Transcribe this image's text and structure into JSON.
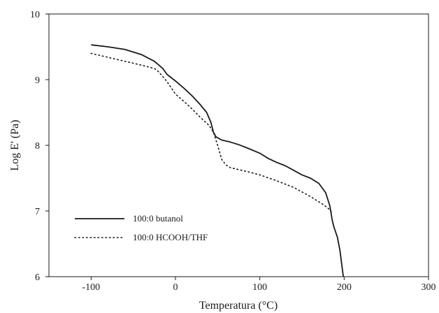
{
  "chart_data": {
    "type": "line",
    "title": "",
    "xlabel": "Temperatura (°C)",
    "ylabel": "Log E' (Pa)",
    "xlim": [
      -150,
      300
    ],
    "ylim": [
      6,
      10
    ],
    "x_ticks": [
      -100,
      0,
      100,
      200,
      300
    ],
    "x_tick_labels": [
      "-100",
      "0",
      "100",
      "200",
      "300"
    ],
    "y_ticks": [
      6,
      7,
      8,
      9,
      10
    ],
    "y_tick_labels": [
      "6",
      "7",
      "8",
      "9",
      "10"
    ],
    "grid": false,
    "legend_position": "bottom-left",
    "series": [
      {
        "name": "100:0 butanol",
        "style": "solid",
        "color": "#1a1a1a",
        "x": [
          -100,
          -80,
          -60,
          -40,
          -25,
          -15,
          -10,
          0,
          10,
          20,
          30,
          37,
          42,
          45,
          48,
          55,
          65,
          75,
          85,
          100,
          110,
          120,
          130,
          140,
          150,
          160,
          170,
          178,
          183,
          186,
          188,
          192,
          195,
          197,
          199
        ],
        "y": [
          9.53,
          9.5,
          9.46,
          9.38,
          9.28,
          9.17,
          9.08,
          8.98,
          8.87,
          8.75,
          8.61,
          8.5,
          8.35,
          8.2,
          8.13,
          8.08,
          8.05,
          8.01,
          7.96,
          7.88,
          7.8,
          7.74,
          7.69,
          7.62,
          7.55,
          7.5,
          7.42,
          7.28,
          7.08,
          6.85,
          6.75,
          6.6,
          6.4,
          6.2,
          6.0
        ]
      },
      {
        "name": "100:0 HCOOH/THF",
        "style": "dotted",
        "color": "#1a1a1a",
        "x": [
          -100,
          -80,
          -60,
          -40,
          -25,
          -20,
          -10,
          0,
          10,
          20,
          30,
          40,
          45,
          50,
          55,
          60,
          65,
          75,
          85,
          100,
          120,
          140,
          160,
          175,
          182,
          185
        ],
        "y": [
          9.4,
          9.34,
          9.28,
          9.22,
          9.17,
          9.12,
          8.97,
          8.78,
          8.67,
          8.55,
          8.42,
          8.3,
          8.2,
          8.0,
          7.78,
          7.7,
          7.66,
          7.63,
          7.6,
          7.55,
          7.46,
          7.36,
          7.22,
          7.1,
          7.03,
          6.98
        ]
      }
    ]
  }
}
